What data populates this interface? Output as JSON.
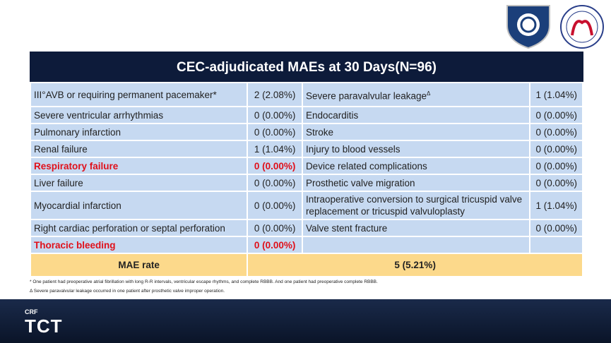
{
  "header": {
    "title": "CEC-adjudicated MAEs at 30 Days(N=96)"
  },
  "table": {
    "rows": [
      {
        "cells": [
          "III°AVB or requiring permanent pacemaker*",
          "2 (2.08%)",
          {
            "text": "Severe paravalvular leakage",
            "sup": "Δ"
          },
          "1 (1.04%)"
        ]
      },
      {
        "cells": [
          "Severe ventricular arrhythmias",
          "0 (0.00%)",
          "Endocarditis",
          "0 (0.00%)"
        ]
      },
      {
        "cells": [
          "Pulmonary infarction",
          "0 (0.00%)",
          "Stroke",
          "0 (0.00%)"
        ]
      },
      {
        "cells": [
          "Renal failure",
          "1 (1.04%)",
          "Injury to blood vessels",
          "0 (0.00%)"
        ]
      },
      {
        "cells": [
          "Respiratory failure",
          "0 (0.00%)",
          "Device related complications",
          "0 (0.00%)"
        ],
        "emphasis": true
      },
      {
        "cells": [
          "Liver failure",
          "0 (0.00%)",
          "Prosthetic valve migration",
          "0 (0.00%)"
        ]
      },
      {
        "cells": [
          "Myocardial infarction",
          "0 (0.00%)",
          "Intraoperative conversion to surgical tricuspid valve replacement or tricuspid valvuloplasty",
          "1 (1.04%)"
        ]
      },
      {
        "cells": [
          "Right cardiac perforation or septal perforation",
          "0 (0.00%)",
          "Valve stent fracture",
          "0 (0.00%)"
        ]
      },
      {
        "cells": [
          "Thoracic bleeding",
          "0 (0.00%)"
        ],
        "emphasis": true
      }
    ],
    "summary": {
      "label": "MAE rate",
      "value": "5 (5.21%)"
    }
  },
  "footnotes": [
    "* One patient had preoperative atrial fibrillation with long R-R intervals, ventricular escape rhythms, and complete RBBB. And one patient had preoperative complete RBBB.",
    "Δ Severe paravalvular leakage occurred in one patient after prosthetic valve improper operation."
  ],
  "footer": {
    "brand": "CRF",
    "logo": "TCT"
  }
}
